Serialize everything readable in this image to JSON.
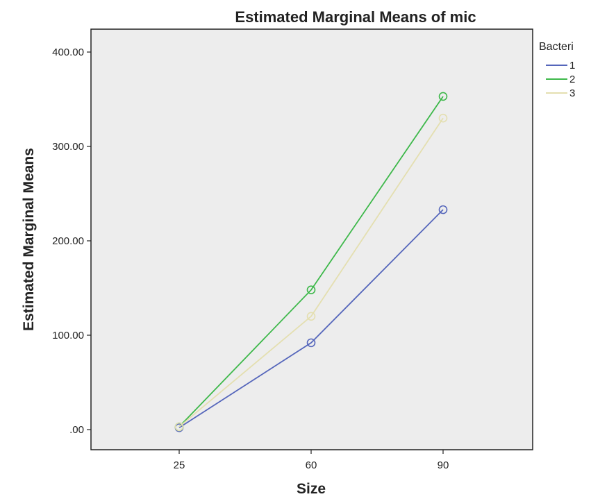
{
  "chart_data": {
    "type": "line",
    "title": "Estimated Marginal Means of mic",
    "xlabel": "Size",
    "ylabel": "Estimated Marginal Means",
    "categories": [
      "25",
      "60",
      "90"
    ],
    "y_ticks": [
      ".00",
      "100.00",
      "200.00",
      "300.00",
      "400.00"
    ],
    "ylim": [
      0,
      400
    ],
    "legend_title": "Bacteri",
    "legend_position": "top-right",
    "markers": "open-circle",
    "series": [
      {
        "name": "1",
        "color": "#5566bb",
        "values": [
          2,
          92,
          233
        ]
      },
      {
        "name": "2",
        "color": "#3db84a",
        "values": [
          3,
          148,
          353
        ]
      },
      {
        "name": "3",
        "color": "#e4dfb0",
        "values": [
          3,
          120,
          330
        ]
      }
    ]
  }
}
